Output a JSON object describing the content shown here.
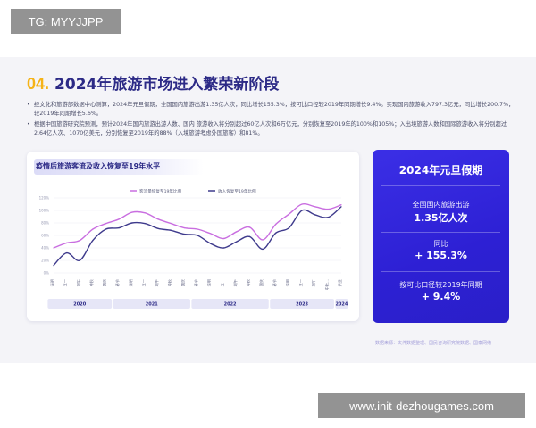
{
  "watermark_top": "TG: MYYJJPP",
  "watermark_bottom": "www.init-dezhougames.com",
  "slide": {
    "number": "04.",
    "title": "2024年旅游市场进入繁荣新阶段",
    "bullets": [
      "经文化和旅游部数据中心测算，2024年元旦假期，全国国内旅游出游1.35亿人次，同比增长155.3%，按可比口径较2019年同期增长9.4%。实现国内旅游收入797.3亿元，同比增长200.7%，较2019年同期增长5.6%。",
      "根据中国旅游研究院预测，预计2024年国内旅游出游人数、国内 旅游收入将分别超过60亿人次和6万亿元，分别恢复至2019年的100%和105%；入出境旅游人数和国际旅游收入将分别超过2.64亿人次、1070亿美元，分别恢复至2019年的88%（入境旅游考虑外国旅客）和81%。"
    ]
  },
  "chart_card": {
    "title": "疫情后旅游客流及收入恢复至19年水平"
  },
  "chart_data": {
    "type": "line",
    "title": "疫情后旅游客流及收入恢复至19年水平",
    "ylim": [
      0,
      120
    ],
    "ytick_labels": [
      "0%",
      "20%",
      "40%",
      "60%",
      "80%",
      "100%",
      "120%"
    ],
    "categories": [
      "清明",
      "五一",
      "端午",
      "中秋",
      "国庆",
      "春节",
      "清明",
      "五一",
      "端午",
      "中秋",
      "国庆",
      "春节",
      "清明",
      "五一",
      "端午",
      "中秋",
      "国庆",
      "春节",
      "清明",
      "五一",
      "端午",
      "中秋...",
      "元旦"
    ],
    "year_groups": [
      {
        "label": "2020",
        "start": 0,
        "end": 4
      },
      {
        "label": "2021",
        "start": 5,
        "end": 10
      },
      {
        "label": "2022",
        "start": 11,
        "end": 16
      },
      {
        "label": "2023",
        "start": 17,
        "end": 21
      },
      {
        "label": "2024",
        "start": 22,
        "end": 22
      }
    ],
    "series": [
      {
        "name": "客流量恢复至19年比例",
        "color": "#c96ee0",
        "values": [
          40,
          48,
          52,
          70,
          79,
          86,
          97,
          96,
          86,
          79,
          72,
          70,
          63,
          55,
          66,
          73,
          53,
          78,
          94,
          110,
          106,
          102,
          109
        ]
      },
      {
        "name": "收入恢复至19年比例",
        "color": "#3e3a8c",
        "values": [
          12,
          32,
          20,
          52,
          70,
          72,
          80,
          79,
          71,
          68,
          62,
          60,
          47,
          40,
          50,
          58,
          38,
          64,
          72,
          100,
          93,
          89,
          106
        ]
      }
    ],
    "grid": true,
    "legend": "top"
  },
  "stat_card": {
    "heading": "2024年元旦假期",
    "stats": [
      {
        "label": "全国国内旅游出游",
        "value": "1.35亿人次"
      },
      {
        "label": "同比",
        "value": "+ 155.3%"
      },
      {
        "label": "按可比口径较2019年同期",
        "value": "+ 9.4%"
      }
    ]
  },
  "source_note": "数据来源：文件数据整理、国民咨询研究院数据、国泰网络"
}
